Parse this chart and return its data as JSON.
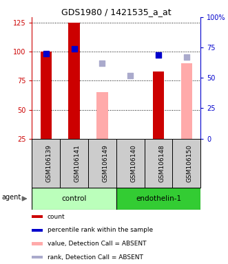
{
  "title": "GDS1980 / 1421535_a_at",
  "samples": [
    "GSM106139",
    "GSM106141",
    "GSM106149",
    "GSM106140",
    "GSM106148",
    "GSM106150"
  ],
  "count_values": [
    100,
    125,
    0,
    0,
    83,
    0
  ],
  "value_absent_values": [
    0,
    0,
    65,
    20,
    0,
    90
  ],
  "percentile_rank_values": [
    70,
    74,
    0,
    0,
    69,
    0
  ],
  "rank_absent_values": [
    0,
    0,
    62,
    52,
    0,
    67
  ],
  "left_ylim": [
    25,
    130
  ],
  "right_ylim": [
    0,
    100
  ],
  "left_ticks": [
    25,
    50,
    75,
    100,
    125
  ],
  "right_ticks": [
    0,
    25,
    50,
    75,
    100
  ],
  "right_tick_labels": [
    "0",
    "25",
    "50",
    "75",
    "100%"
  ],
  "color_count": "#cc0000",
  "color_value_absent": "#ffaaaa",
  "color_percentile": "#0000cc",
  "color_rank_absent": "#aaaacc",
  "color_xticklabel_bg": "#cccccc",
  "groups": [
    {
      "label": "control",
      "indices": [
        0,
        1,
        2
      ],
      "color": "#bbffbb"
    },
    {
      "label": "endothelin-1",
      "indices": [
        3,
        4,
        5
      ],
      "color": "#33cc33"
    }
  ],
  "bar_width": 0.4,
  "square_size": 35,
  "agent_label": "agent",
  "legend_items": [
    {
      "label": "count",
      "color": "#cc0000"
    },
    {
      "label": "percentile rank within the sample",
      "color": "#0000cc"
    },
    {
      "label": "value, Detection Call = ABSENT",
      "color": "#ffaaaa"
    },
    {
      "label": "rank, Detection Call = ABSENT",
      "color": "#aaaacc"
    }
  ]
}
